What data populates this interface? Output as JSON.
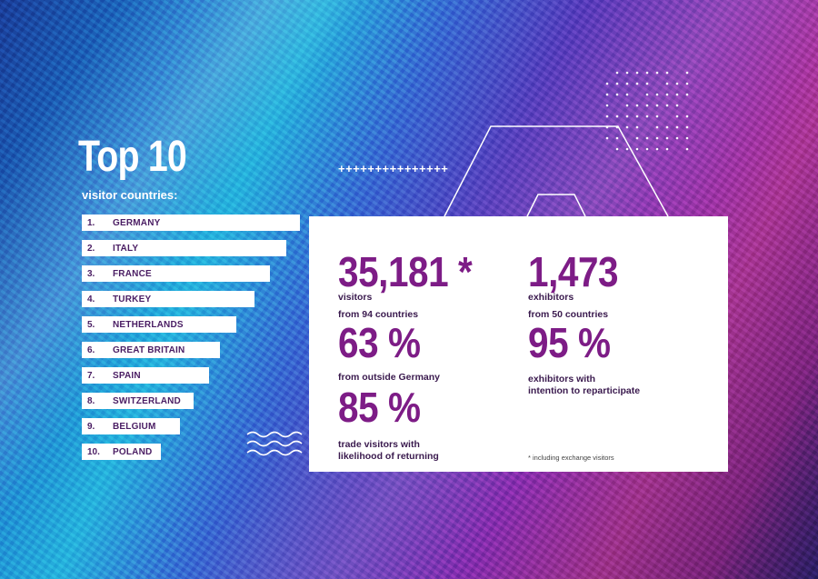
{
  "colors": {
    "accent": "#7d1c86",
    "card": "#ffffff",
    "text_dark": "#3a1a4e"
  },
  "title": "Top 10",
  "subtitle": "visitor countries:",
  "ranking": [
    {
      "num": "1.",
      "country": "GERMANY"
    },
    {
      "num": "2.",
      "country": "ITALY"
    },
    {
      "num": "3.",
      "country": "FRANCE"
    },
    {
      "num": "4.",
      "country": "TURKEY"
    },
    {
      "num": "5.",
      "country": "NETHERLANDS"
    },
    {
      "num": "6.",
      "country": "GREAT BRITAIN"
    },
    {
      "num": "7.",
      "country": "SPAIN"
    },
    {
      "num": "8.",
      "country": "SWITZERLAND"
    },
    {
      "num": "9.",
      "country": "BELGIUM"
    },
    {
      "num": "10.",
      "country": "POLAND"
    }
  ],
  "stats": {
    "visitors_value": "35,181 *",
    "visitors_label": "visitors",
    "visitors_countries": "from 94 countries",
    "outside_value": "63 %",
    "outside_label": "from outside Germany",
    "returning_value": "85 %",
    "returning_label_1": "trade visitors with",
    "returning_label_2": "likelihood of returning",
    "exhibitors_value": "1,473",
    "exhibitors_label": "exhibitors",
    "exhibitors_countries": "from 50 countries",
    "repart_value": "95 %",
    "repart_label_1": "exhibitors with",
    "repart_label_2": "intention to reparticipate",
    "footnote": "* including exchange visitors"
  },
  "decor": {
    "plus_row": "+++++++++++++++"
  }
}
